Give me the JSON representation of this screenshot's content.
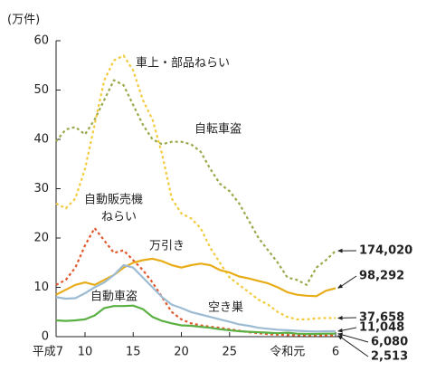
{
  "chart_data": {
    "type": "line",
    "y_label": "(万件)",
    "ylim": [
      0,
      60
    ],
    "yticks": [
      0,
      10,
      20,
      30,
      40,
      50,
      60
    ],
    "categories": [
      "平成7",
      null,
      null,
      "10",
      null,
      null,
      null,
      null,
      "15",
      null,
      null,
      null,
      null,
      "20",
      null,
      null,
      null,
      null,
      "25",
      null,
      null,
      null,
      null,
      null,
      "令和元",
      null,
      null,
      null,
      null,
      "6"
    ],
    "series": [
      {
        "name": [
          "自転車盗"
        ],
        "color": "#9aa84a",
        "dashed": true,
        "values": [
          39.6,
          42,
          42.5,
          41,
          44,
          48,
          52,
          51,
          47,
          43,
          40,
          39,
          39.5,
          39.5,
          39,
          37.5,
          34,
          31,
          29.5,
          27,
          23.5,
          20,
          17.5,
          15,
          12,
          11.5,
          10.5,
          14,
          15.5,
          17.402
        ],
        "value_labels": [
          null,
          null,
          null,
          null,
          null,
          null,
          null,
          null,
          null,
          null,
          null,
          null,
          null,
          null,
          null,
          null,
          null,
          null,
          null,
          null,
          null,
          null,
          null,
          null,
          null,
          null,
          null,
          null,
          null,
          "174,020"
        ]
      },
      {
        "name": [
          "車上・部品ねらい"
        ],
        "color": "#f2cb3d",
        "dashed": true,
        "values": [
          27,
          26,
          28,
          34,
          43,
          52,
          56,
          57,
          54,
          48,
          44,
          37,
          28,
          25,
          24,
          22,
          18,
          15,
          12,
          10.5,
          9,
          7.5,
          6.5,
          5,
          4,
          3.5,
          3.5,
          3.7,
          3.8,
          3.7658
        ],
        "value_labels": [
          null,
          null,
          null,
          null,
          null,
          null,
          null,
          null,
          null,
          null,
          null,
          null,
          null,
          null,
          null,
          null,
          null,
          null,
          null,
          null,
          null,
          null,
          null,
          null,
          null,
          null,
          null,
          null,
          null,
          "37,658"
        ]
      },
      {
        "name": [
          "自動販売機",
          "ねらい"
        ],
        "color": "#e0572a",
        "dashed": true,
        "values": [
          10.5,
          11.5,
          14,
          18.5,
          22,
          19.5,
          17,
          17.5,
          15.5,
          13.5,
          11,
          8,
          5,
          3.5,
          2.7,
          2.3,
          2,
          1.8,
          1.5,
          1.2,
          0.9,
          0.7,
          0.5,
          0.4,
          0.35,
          0.3,
          0.28,
          0.27,
          0.26,
          0.2513
        ],
        "value_labels": [
          null,
          null,
          null,
          null,
          null,
          null,
          null,
          null,
          null,
          null,
          null,
          null,
          null,
          null,
          null,
          null,
          null,
          null,
          null,
          null,
          null,
          null,
          null,
          null,
          null,
          null,
          null,
          null,
          null,
          "2,513"
        ]
      },
      {
        "name": [
          "万引き"
        ],
        "color": "#e8ac17",
        "dashed": false,
        "values": [
          8.5,
          9.5,
          10.5,
          11,
          10.5,
          11.5,
          12.5,
          14,
          15,
          15.5,
          15.8,
          15.3,
          14.5,
          14,
          14.5,
          14.8,
          14.5,
          13.5,
          13,
          12.2,
          11.8,
          11.3,
          10.8,
          10,
          9,
          8.5,
          8.3,
          8.2,
          9.3,
          9.8292
        ],
        "value_labels": [
          null,
          null,
          null,
          null,
          null,
          null,
          null,
          null,
          null,
          null,
          null,
          null,
          null,
          null,
          null,
          null,
          null,
          null,
          null,
          null,
          null,
          null,
          null,
          null,
          null,
          null,
          null,
          null,
          null,
          "98,292"
        ]
      },
      {
        "name": [
          "空き巣"
        ],
        "color": "#9dbcd3",
        "dashed": false,
        "values": [
          8,
          7.7,
          7.8,
          8.8,
          10,
          11,
          12.5,
          14.5,
          14,
          12,
          10,
          8,
          6.5,
          5.8,
          5,
          4.5,
          4,
          3.5,
          3,
          2.5,
          2.2,
          1.8,
          1.6,
          1.4,
          1.3,
          1.2,
          1.1,
          1.05,
          1.1,
          1.1048
        ],
        "value_labels": [
          null,
          null,
          null,
          null,
          null,
          null,
          null,
          null,
          null,
          null,
          null,
          null,
          null,
          null,
          null,
          null,
          null,
          null,
          null,
          null,
          null,
          null,
          null,
          null,
          null,
          null,
          null,
          null,
          null,
          "11,048"
        ]
      },
      {
        "name": [
          "自動車盗"
        ],
        "color": "#5bb043",
        "dashed": false,
        "values": [
          3.3,
          3.2,
          3.3,
          3.5,
          4.3,
          5.8,
          6.2,
          6.2,
          6.3,
          5.6,
          4,
          3.2,
          2.7,
          2.3,
          2.2,
          2,
          1.8,
          1.5,
          1.3,
          1.1,
          1,
          0.9,
          0.8,
          0.7,
          0.8,
          0.6,
          0.55,
          0.55,
          0.6,
          0.608
        ],
        "value_labels": [
          null,
          null,
          null,
          null,
          null,
          null,
          null,
          null,
          null,
          null,
          null,
          null,
          null,
          null,
          null,
          null,
          null,
          null,
          null,
          null,
          null,
          null,
          null,
          null,
          null,
          null,
          null,
          null,
          null,
          "6,080"
        ]
      }
    ]
  }
}
